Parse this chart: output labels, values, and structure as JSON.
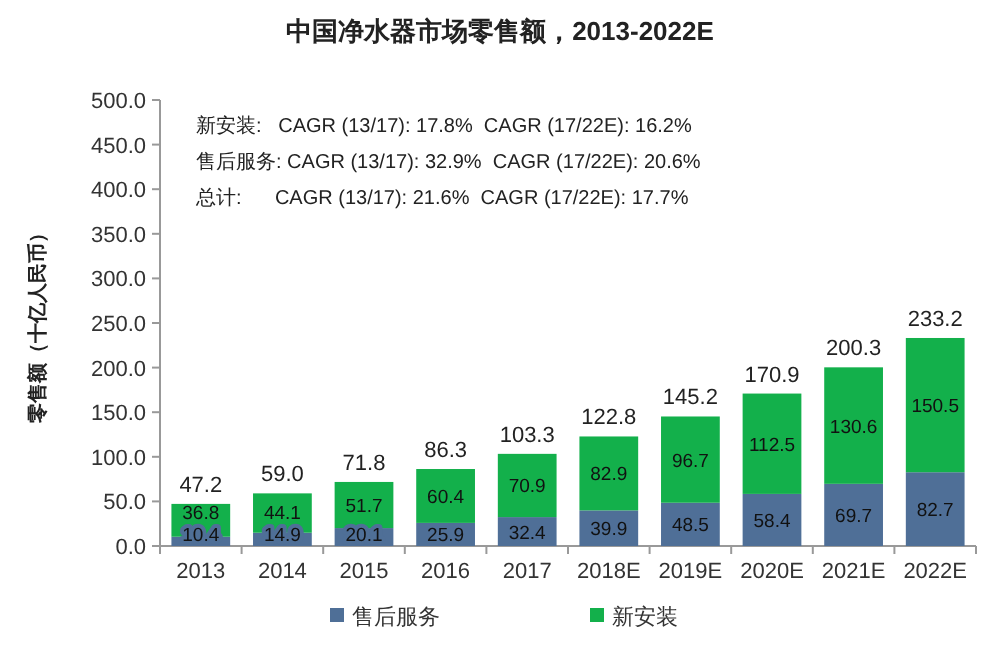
{
  "chart_data": {
    "type": "bar",
    "title": "中国净水器市场零售额，2013-2022E",
    "ylabel": "零售额（十亿人民币）",
    "categories": [
      "2013",
      "2014",
      "2015",
      "2016",
      "2017",
      "2018E",
      "2019E",
      "2020E",
      "2021E",
      "2022E"
    ],
    "series": [
      {
        "name": "售后服务",
        "color": "#4f6f97",
        "values": [
          10.4,
          14.9,
          20.1,
          25.9,
          32.4,
          39.9,
          48.5,
          58.4,
          69.7,
          82.7
        ]
      },
      {
        "name": "新安装",
        "color": "#13b04b",
        "values": [
          36.8,
          44.1,
          51.7,
          60.4,
          70.9,
          82.9,
          96.7,
          112.5,
          130.6,
          150.5
        ]
      }
    ],
    "stacked": true,
    "data_labels": true,
    "totals": [
      "47.2",
      "59.0",
      "71.8",
      "86.3",
      "103.3",
      "122.8",
      "145.2",
      "170.9",
      "200.3",
      "233.2"
    ],
    "ylim": [
      0,
      500
    ],
    "yticks": [
      {
        "value": 0,
        "label": "0.0"
      },
      {
        "value": 50,
        "label": "50.0"
      },
      {
        "value": 100,
        "label": "100.0"
      },
      {
        "value": 150,
        "label": "150.0"
      },
      {
        "value": 200,
        "label": "200.0"
      },
      {
        "value": 250,
        "label": "250.0"
      },
      {
        "value": 300,
        "label": "300.0"
      },
      {
        "value": 350,
        "label": "350.0"
      },
      {
        "value": 400,
        "label": "400.0"
      },
      {
        "value": 450,
        "label": "450.0"
      },
      {
        "value": 500,
        "label": "500.0"
      }
    ],
    "annotations": [
      "新安装:   CAGR (13/17): 17.8%  CAGR (17/22E): 16.2%",
      "售后服务: CAGR (13/17): 32.9%  CAGR (17/22E): 20.6%",
      "总计:      CAGR (13/17): 21.6%  CAGR (17/22E): 17.7%"
    ],
    "grid": false,
    "legend": "bottom"
  }
}
